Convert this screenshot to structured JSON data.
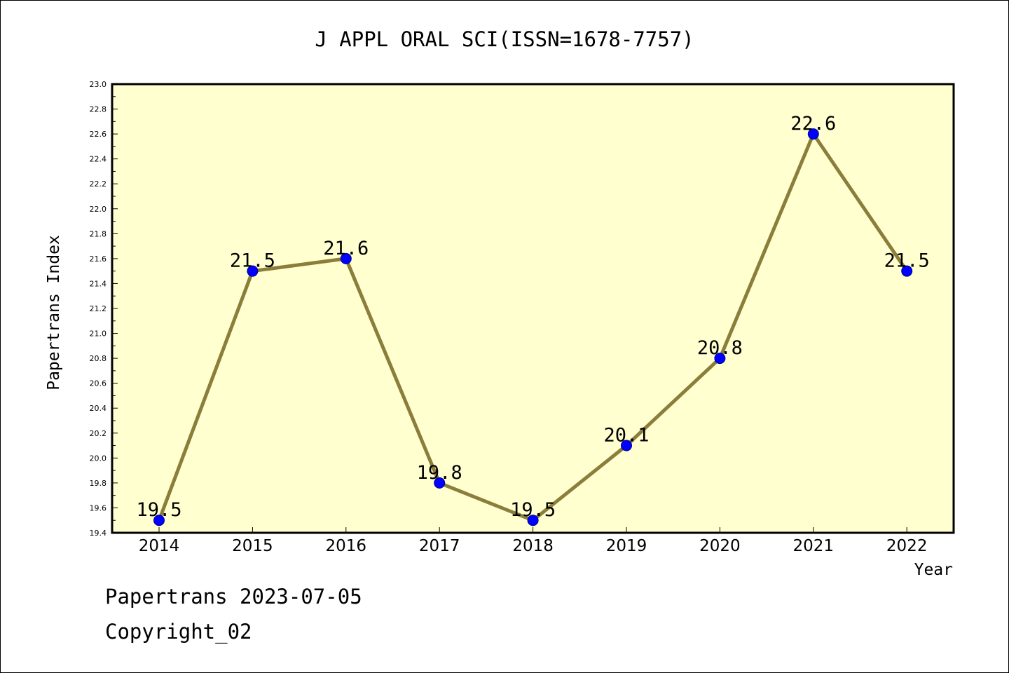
{
  "chart_data": {
    "type": "line",
    "title": "J APPL ORAL SCI(ISSN=1678-7757)",
    "xlabel": "Year",
    "ylabel": "Papertrans Index",
    "categories": [
      "2014",
      "2015",
      "2016",
      "2017",
      "2018",
      "2019",
      "2020",
      "2021",
      "2022"
    ],
    "series": [
      {
        "values": [
          19.5,
          21.5,
          21.6,
          19.8,
          19.5,
          20.1,
          20.8,
          22.6,
          21.5
        ]
      }
    ],
    "data_labels": [
      "19.5",
      "21.5",
      "21.6",
      "19.8",
      "19.5",
      "20.1",
      "20.8",
      "22.6",
      "21.5"
    ],
    "ylim": [
      19.4,
      23.0
    ],
    "yticks": [
      "19.4",
      "19.6",
      "19.8",
      "20.0",
      "20.2",
      "20.4",
      "20.6",
      "20.8",
      "21.0",
      "21.2",
      "21.4",
      "21.6",
      "21.8",
      "22.0",
      "22.2",
      "22.4",
      "22.6",
      "22.8",
      "23.0"
    ],
    "grid": false,
    "colors": {
      "plot_background": "#ffffd0",
      "line": "#8b7d3a",
      "marker": "#0000ff"
    }
  },
  "footer": {
    "line1": "Papertrans 2023-07-05",
    "line2": "Copyright_02"
  }
}
